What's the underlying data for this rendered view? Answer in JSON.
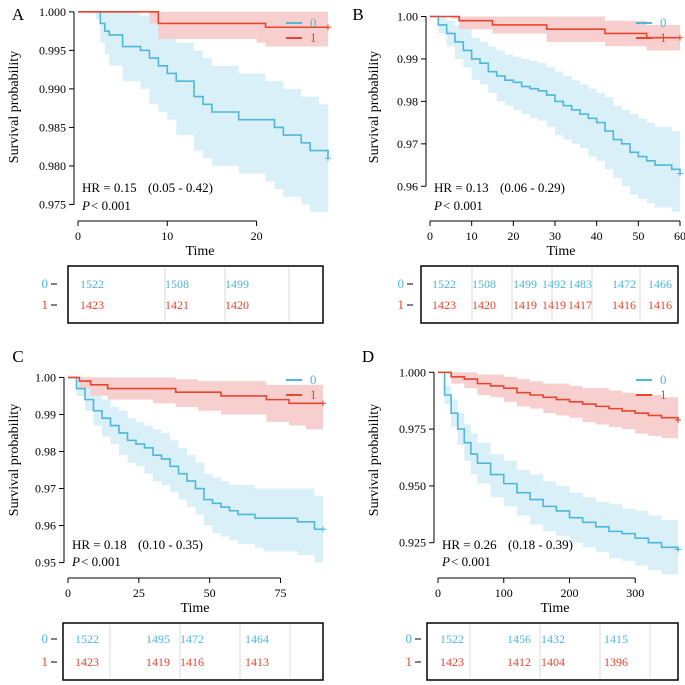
{
  "colors": {
    "group0": "#4DB8D8",
    "group1": "#E8452C",
    "band0": "#D6EEF7",
    "band1": "#F7CACA",
    "axis": "#000000"
  },
  "chart_data": [
    {
      "label": "A",
      "type": "line",
      "xlabel": "Time",
      "ylabel": "Survival probability",
      "xlim": [
        0,
        28
      ],
      "ylim": [
        0.9735,
        1.0005
      ],
      "xticks": [
        0,
        10,
        20
      ],
      "yticks": [
        0.975,
        0.98,
        0.985,
        0.99,
        0.995,
        1.0
      ],
      "ytick_labels": [
        "0.975",
        "0.980",
        "0.985",
        "0.990",
        "0.995",
        "1.000"
      ],
      "hr_text": "HR = 0.15",
      "ci_text": "(0.05  -  0.42)",
      "p_symbol": "P",
      "p_text": " < 0.001",
      "legend": [
        "0",
        "1"
      ],
      "series": [
        {
          "name": "0",
          "x": [
            0,
            2,
            2.5,
            3,
            3.5,
            5,
            7,
            8,
            9,
            10,
            11,
            12,
            13,
            14,
            15,
            16,
            17,
            18,
            19,
            20,
            21,
            22,
            23,
            24,
            25,
            26,
            27,
            28
          ],
          "y": [
            1.0,
            1.0,
            0.9985,
            0.9975,
            0.997,
            0.9955,
            0.995,
            0.994,
            0.993,
            0.992,
            0.991,
            0.991,
            0.989,
            0.988,
            0.987,
            0.987,
            0.987,
            0.986,
            0.986,
            0.986,
            0.986,
            0.985,
            0.984,
            0.984,
            0.983,
            0.982,
            0.982,
            0.981
          ],
          "lower": [
            1.0,
            0.999,
            0.996,
            0.9945,
            0.993,
            0.991,
            0.99,
            0.988,
            0.987,
            0.986,
            0.984,
            0.984,
            0.982,
            0.981,
            0.98,
            0.98,
            0.98,
            0.979,
            0.979,
            0.979,
            0.978,
            0.977,
            0.976,
            0.976,
            0.975,
            0.974,
            0.974,
            0.974
          ],
          "upper": [
            1.0,
            1.0,
            1.0,
            1.0,
            1.0,
            1.0,
            0.9995,
            0.999,
            0.998,
            0.997,
            0.996,
            0.996,
            0.995,
            0.994,
            0.993,
            0.993,
            0.993,
            0.992,
            0.992,
            0.992,
            0.991,
            0.991,
            0.99,
            0.99,
            0.989,
            0.989,
            0.988,
            0.988
          ]
        },
        {
          "name": "1",
          "x": [
            0,
            8,
            9,
            20,
            21,
            28
          ],
          "y": [
            1.0,
            1.0,
            0.9985,
            0.9985,
            0.998,
            0.998
          ],
          "lower": [
            1.0,
            0.9985,
            0.9965,
            0.996,
            0.9955,
            0.9955
          ],
          "upper": [
            1.0,
            1.0,
            1.0,
            1.0,
            1.0,
            1.0
          ]
        }
      ],
      "risk_table": {
        "rows": [
          {
            "name": "0",
            "counts": [
              "1522",
              "1508",
              "1499"
            ]
          },
          {
            "name": "1",
            "counts": [
              "1423",
              "1421",
              "1420"
            ]
          }
        ]
      }
    },
    {
      "label": "B",
      "type": "line",
      "xlabel": "Time",
      "ylabel": "Survival probability",
      "xlim": [
        0,
        60
      ],
      "ylim": [
        0.953,
        1.002
      ],
      "xticks": [
        0,
        10,
        20,
        30,
        40,
        50,
        60
      ],
      "yticks": [
        0.96,
        0.97,
        0.98,
        0.99,
        1.0
      ],
      "ytick_labels": [
        "0.96",
        "0.97",
        "0.98",
        "0.99",
        "1.00"
      ],
      "hr_text": "HR = 0.13",
      "ci_text": "(0.06  -  0.29)",
      "p_symbol": "P",
      "p_text": " < 0.001",
      "legend": [
        "0",
        "1"
      ],
      "series": [
        {
          "name": "0",
          "x": [
            0,
            2,
            4,
            6,
            8,
            10,
            12,
            14,
            16,
            18,
            20,
            22,
            24,
            26,
            28,
            30,
            32,
            34,
            36,
            38,
            40,
            42,
            44,
            46,
            48,
            50,
            52,
            54,
            56,
            58,
            60
          ],
          "y": [
            1.0,
            0.998,
            0.996,
            0.994,
            0.992,
            0.99,
            0.989,
            0.987,
            0.986,
            0.985,
            0.9845,
            0.9835,
            0.983,
            0.9825,
            0.9815,
            0.98,
            0.979,
            0.978,
            0.977,
            0.976,
            0.975,
            0.973,
            0.971,
            0.97,
            0.968,
            0.967,
            0.966,
            0.965,
            0.965,
            0.964,
            0.963
          ],
          "lower": [
            1.0,
            0.996,
            0.993,
            0.99,
            0.988,
            0.985,
            0.984,
            0.982,
            0.98,
            0.979,
            0.978,
            0.977,
            0.976,
            0.9755,
            0.974,
            0.972,
            0.971,
            0.97,
            0.969,
            0.967,
            0.966,
            0.964,
            0.962,
            0.96,
            0.958,
            0.957,
            0.956,
            0.955,
            0.955,
            0.954,
            0.953
          ],
          "upper": [
            1.0,
            1.0,
            0.999,
            0.998,
            0.997,
            0.995,
            0.994,
            0.993,
            0.992,
            0.991,
            0.9905,
            0.99,
            0.9895,
            0.989,
            0.988,
            0.987,
            0.986,
            0.985,
            0.984,
            0.983,
            0.982,
            0.981,
            0.979,
            0.978,
            0.977,
            0.976,
            0.975,
            0.974,
            0.974,
            0.973,
            0.972
          ]
        },
        {
          "name": "1",
          "x": [
            0,
            5,
            7,
            12,
            15,
            22,
            28,
            35,
            42,
            48,
            52,
            60
          ],
          "y": [
            1.0,
            1.0,
            0.999,
            0.999,
            0.998,
            0.998,
            0.997,
            0.997,
            0.996,
            0.996,
            0.995,
            0.995
          ],
          "lower": [
            1.0,
            0.9995,
            0.997,
            0.997,
            0.996,
            0.996,
            0.994,
            0.994,
            0.993,
            0.993,
            0.992,
            0.992
          ],
          "upper": [
            1.0,
            1.0,
            1.0,
            1.0,
            1.0,
            1.0,
            1.0,
            1.0,
            0.999,
            0.999,
            0.998,
            0.998
          ]
        }
      ],
      "risk_table": {
        "rows": [
          {
            "name": "0",
            "counts": [
              "1522",
              "1508",
              "1499",
              "1492",
              "1483",
              "1472",
              "1466"
            ]
          },
          {
            "name": "1",
            "counts": [
              "1423",
              "1420",
              "1419",
              "1419",
              "1417",
              "1416",
              "1416"
            ]
          }
        ]
      }
    },
    {
      "label": "C",
      "type": "line",
      "xlabel": "Time",
      "ylabel": "Survival probability",
      "xlim": [
        0,
        90
      ],
      "ylim": [
        0.948,
        1.002
      ],
      "xticks": [
        0,
        25,
        50,
        75
      ],
      "yticks": [
        0.95,
        0.96,
        0.97,
        0.98,
        0.99,
        1.0
      ],
      "ytick_labels": [
        "0.95",
        "0.96",
        "0.97",
        "0.98",
        "0.99",
        "1.00"
      ],
      "hr_text": "HR = 0.18",
      "ci_text": "(0.10  -  0.35)",
      "p_symbol": "P",
      "p_text": " < 0.001",
      "legend": [
        "0",
        "1"
      ],
      "series": [
        {
          "name": "0",
          "x": [
            0,
            3,
            6,
            9,
            12,
            15,
            18,
            21,
            24,
            27,
            30,
            33,
            36,
            39,
            42,
            45,
            48,
            51,
            54,
            57,
            60,
            63,
            66,
            69,
            72,
            75,
            78,
            81,
            84,
            87,
            90
          ],
          "y": [
            1.0,
            0.997,
            0.994,
            0.991,
            0.989,
            0.987,
            0.985,
            0.983,
            0.982,
            0.981,
            0.979,
            0.978,
            0.976,
            0.974,
            0.972,
            0.97,
            0.967,
            0.966,
            0.965,
            0.964,
            0.963,
            0.963,
            0.962,
            0.962,
            0.962,
            0.962,
            0.962,
            0.961,
            0.961,
            0.959,
            0.959
          ],
          "lower": [
            1.0,
            0.995,
            0.991,
            0.987,
            0.984,
            0.982,
            0.979,
            0.977,
            0.976,
            0.974,
            0.972,
            0.971,
            0.969,
            0.967,
            0.965,
            0.963,
            0.96,
            0.958,
            0.957,
            0.956,
            0.955,
            0.955,
            0.954,
            0.953,
            0.953,
            0.953,
            0.953,
            0.952,
            0.952,
            0.95,
            0.95
          ],
          "upper": [
            1.0,
            0.999,
            0.997,
            0.995,
            0.994,
            0.992,
            0.991,
            0.989,
            0.988,
            0.987,
            0.986,
            0.985,
            0.983,
            0.981,
            0.979,
            0.977,
            0.974,
            0.973,
            0.972,
            0.971,
            0.971,
            0.971,
            0.97,
            0.97,
            0.97,
            0.97,
            0.97,
            0.97,
            0.97,
            0.968,
            0.968
          ]
        },
        {
          "name": "1",
          "x": [
            0,
            4,
            8,
            14,
            22,
            30,
            38,
            46,
            54,
            62,
            70,
            78,
            84,
            90
          ],
          "y": [
            1.0,
            0.999,
            0.998,
            0.997,
            0.997,
            0.997,
            0.996,
            0.996,
            0.995,
            0.995,
            0.994,
            0.993,
            0.993,
            0.993
          ],
          "lower": [
            1.0,
            0.997,
            0.995,
            0.994,
            0.994,
            0.993,
            0.992,
            0.991,
            0.99,
            0.99,
            0.988,
            0.987,
            0.986,
            0.985
          ],
          "upper": [
            1.0,
            1.0,
            1.0,
            1.0,
            1.0,
            1.0,
            0.9995,
            0.999,
            0.999,
            0.999,
            0.998,
            0.998,
            0.998,
            0.998
          ]
        }
      ],
      "risk_table": {
        "rows": [
          {
            "name": "0",
            "counts": [
              "1522",
              "1495",
              "1472",
              "1464"
            ]
          },
          {
            "name": "1",
            "counts": [
              "1423",
              "1419",
              "1416",
              "1413"
            ]
          }
        ]
      }
    },
    {
      "label": "D",
      "type": "line",
      "xlabel": "Time",
      "ylabel": "Survival probability",
      "xlim": [
        0,
        365
      ],
      "ylim": [
        0.913,
        1.001
      ],
      "xticks": [
        0,
        100,
        200,
        300
      ],
      "yticks": [
        0.925,
        0.95,
        0.975,
        1.0
      ],
      "ytick_labels": [
        "0.925",
        "0.950",
        "0.975",
        "1.000"
      ],
      "hr_text": "HR = 0.26",
      "ci_text": "(0.18  -  0.39)",
      "p_symbol": "P",
      "p_text": " < 0.001",
      "legend": [
        "0",
        "1"
      ],
      "series": [
        {
          "name": "0",
          "x": [
            0,
            10,
            20,
            30,
            40,
            50,
            60,
            80,
            100,
            120,
            140,
            160,
            180,
            200,
            220,
            240,
            260,
            280,
            300,
            320,
            340,
            365
          ],
          "y": [
            1.0,
            0.99,
            0.982,
            0.975,
            0.969,
            0.964,
            0.96,
            0.955,
            0.951,
            0.947,
            0.944,
            0.941,
            0.939,
            0.936,
            0.934,
            0.932,
            0.93,
            0.929,
            0.927,
            0.925,
            0.923,
            0.922
          ],
          "lower": [
            1.0,
            0.986,
            0.976,
            0.968,
            0.961,
            0.955,
            0.951,
            0.945,
            0.941,
            0.937,
            0.933,
            0.93,
            0.928,
            0.925,
            0.923,
            0.921,
            0.918,
            0.917,
            0.915,
            0.913,
            0.911,
            0.91
          ],
          "upper": [
            1.0,
            0.994,
            0.988,
            0.982,
            0.977,
            0.973,
            0.969,
            0.964,
            0.961,
            0.957,
            0.955,
            0.952,
            0.95,
            0.947,
            0.945,
            0.943,
            0.942,
            0.94,
            0.939,
            0.937,
            0.935,
            0.934
          ]
        },
        {
          "name": "1",
          "x": [
            0,
            20,
            40,
            60,
            80,
            100,
            120,
            140,
            160,
            180,
            200,
            220,
            240,
            260,
            280,
            300,
            320,
            340,
            365
          ],
          "y": [
            1.0,
            0.998,
            0.997,
            0.995,
            0.994,
            0.993,
            0.991,
            0.99,
            0.989,
            0.988,
            0.987,
            0.986,
            0.985,
            0.984,
            0.983,
            0.982,
            0.981,
            0.98,
            0.979
          ],
          "lower": [
            1.0,
            0.995,
            0.993,
            0.99,
            0.989,
            0.987,
            0.985,
            0.984,
            0.982,
            0.981,
            0.98,
            0.978,
            0.977,
            0.976,
            0.975,
            0.973,
            0.972,
            0.971,
            0.97
          ],
          "upper": [
            1.0,
            1.0,
            1.0,
            0.999,
            0.999,
            0.998,
            0.997,
            0.996,
            0.995,
            0.995,
            0.994,
            0.993,
            0.993,
            0.992,
            0.991,
            0.99,
            0.99,
            0.989,
            0.988
          ]
        }
      ],
      "risk_table": {
        "rows": [
          {
            "name": "0",
            "counts": [
              "1522",
              "1456",
              "1432",
              "1415"
            ]
          },
          {
            "name": "1",
            "counts": [
              "1423",
              "1412",
              "1404",
              "1396"
            ]
          }
        ]
      }
    }
  ]
}
